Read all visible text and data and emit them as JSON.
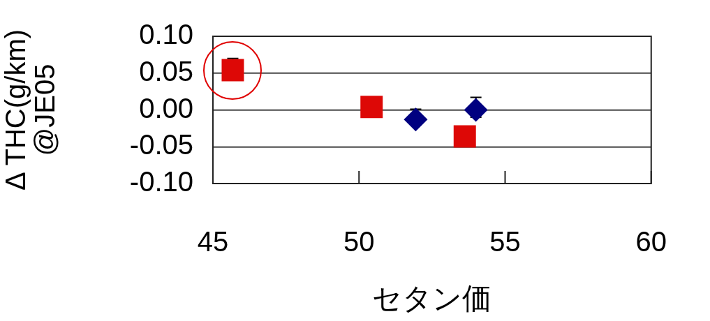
{
  "chart_data": {
    "type": "scatter",
    "xlabel": "セタン価",
    "ylabel": "Δ THC(g/km)\n@JE05",
    "xlim": [
      45,
      60
    ],
    "xticks": [
      45,
      50,
      55,
      60
    ],
    "ylim": [
      -0.1,
      0.1
    ],
    "yticks": [
      {
        "value": -0.1,
        "label": "-0.10"
      },
      {
        "value": -0.05,
        "label": "-0.05"
      },
      {
        "value": 0,
        "label": "0.00"
      },
      {
        "value": 0.05,
        "label": "0.05"
      },
      {
        "value": 0.1,
        "label": "0.10"
      }
    ],
    "grid": "y",
    "legend": false,
    "series": [
      {
        "color": "#dd0806",
        "marker": "square",
        "x": [
          45.68,
          50.43,
          53.62
        ],
        "values": [
          0.054,
          0.004,
          -0.036
        ],
        "errors": [
          [
            0.054,
            0.07
          ],
          null,
          null
        ]
      },
      {
        "color": "#000080",
        "marker": "diamond",
        "x": [
          51.94,
          54.0
        ],
        "values": [
          -0.013,
          0.0
        ],
        "errors": [
          [
            -0.013,
            0.001
          ],
          [
            -0.01,
            0.017
          ]
        ]
      }
    ]
  }
}
